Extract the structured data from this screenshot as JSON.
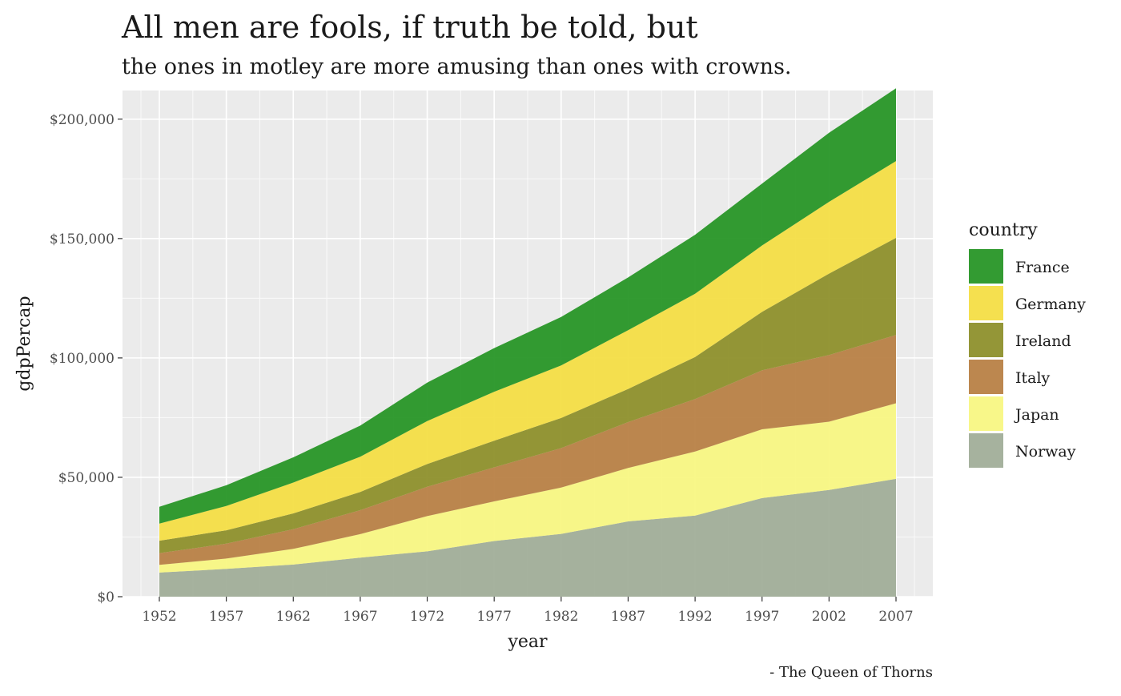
{
  "chart_data": {
    "type": "area",
    "stacked": true,
    "title": "All men are fools, if truth be told, but",
    "subtitle": "the ones in motley are more amusing than ones with crowns.",
    "xlabel": "year",
    "ylabel": "gdpPercap",
    "caption": "- The Queen of Thorns",
    "legend_title": "country",
    "legend_position": "right",
    "grid": true,
    "x": [
      1952,
      1957,
      1962,
      1967,
      1972,
      1977,
      1982,
      1987,
      1992,
      1997,
      2002,
      2007
    ],
    "xticks": [
      1952,
      1957,
      1962,
      1967,
      1972,
      1977,
      1982,
      1987,
      1992,
      1997,
      2002,
      2007
    ],
    "ylim": [
      0,
      212000
    ],
    "yticks": [
      0,
      50000,
      100000,
      150000,
      200000
    ],
    "ytick_labels": [
      "$0",
      "$50,000",
      "$100,000",
      "$150,000",
      "$200,000"
    ],
    "series": [
      {
        "name": "France",
        "color": "#249322",
        "values": [
          7030,
          8660,
          10560,
          13000,
          16110,
          18290,
          20290,
          22070,
          24700,
          25890,
          28930,
          30470
        ]
      },
      {
        "name": "Germany",
        "color": "#F4DE42",
        "values": [
          7140,
          10190,
          12900,
          14750,
          18020,
          20510,
          22030,
          24640,
          26510,
          27790,
          30040,
          32170
        ]
      },
      {
        "name": "Ireland",
        "color": "#8C8E28",
        "values": [
          5210,
          5600,
          6630,
          7660,
          9530,
          11150,
          12620,
          13870,
          17560,
          24520,
          34080,
          40680
        ]
      },
      {
        "name": "Italy",
        "color": "#B77E42",
        "values": [
          4930,
          6250,
          8240,
          10020,
          12270,
          14260,
          16540,
          19210,
          22010,
          24680,
          27970,
          28570
        ]
      },
      {
        "name": "Japan",
        "color": "#F7F680",
        "values": [
          3220,
          4320,
          6580,
          9850,
          14780,
          16610,
          19380,
          22380,
          26820,
          28820,
          28600,
          31660
        ]
      },
      {
        "name": "Norway",
        "color": "#9FAC97",
        "values": [
          10100,
          11650,
          13450,
          16360,
          18970,
          23310,
          26300,
          31540,
          33970,
          41280,
          44680,
          49360
        ]
      }
    ]
  }
}
